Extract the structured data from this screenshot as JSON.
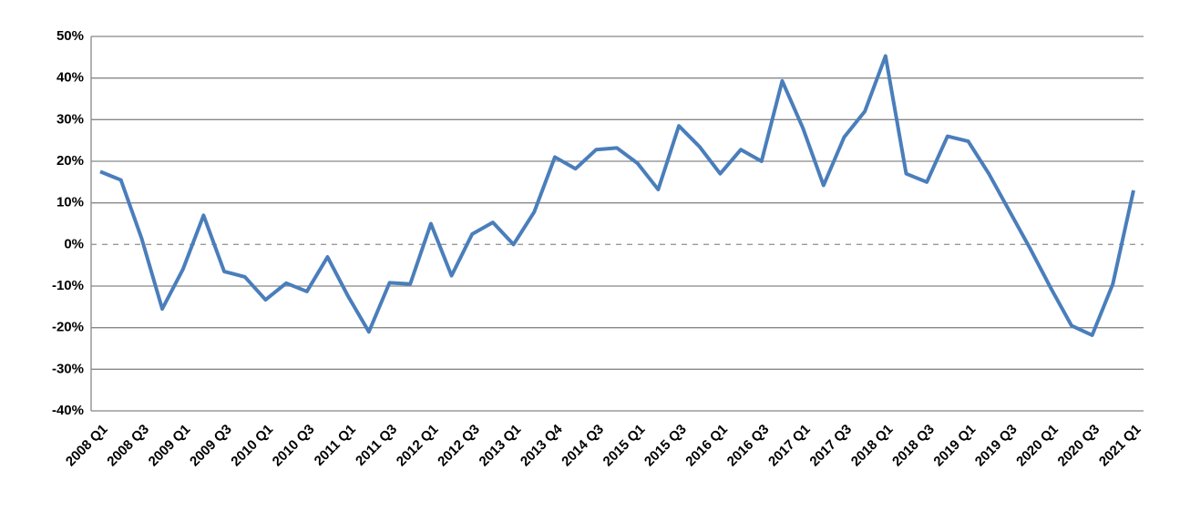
{
  "chart_data": {
    "type": "line",
    "categories": [
      "2008 Q1",
      null,
      "2008 Q3",
      null,
      "2009 Q1",
      null,
      "2009 Q3",
      null,
      "2010 Q1",
      null,
      "2010 Q3",
      null,
      "2011 Q1",
      null,
      "2011 Q3",
      null,
      "2012 Q1",
      null,
      "2012 Q3",
      null,
      "2013 Q1",
      null,
      "2013 Q4",
      null,
      "2014 Q3",
      null,
      "2015 Q1",
      null,
      "2015 Q3",
      null,
      "2016 Q1",
      null,
      "2016 Q3",
      null,
      "2017 Q1",
      null,
      "2017 Q3",
      null,
      "2018 Q1",
      null,
      "2018 Q3",
      null,
      "2019 Q1",
      null,
      "2019 Q3",
      null,
      "2020 Q1",
      null,
      "2020 Q3",
      null,
      "2021 Q1"
    ],
    "series": [
      {
        "color": "#4a7ebb",
        "values": [
          17.5,
          15.5,
          1.5,
          -15.5,
          -6,
          7,
          -6.5,
          -7.8,
          -13.3,
          -9.3,
          -11.3,
          -3,
          -12.5,
          -21,
          -9.2,
          -9.5,
          5,
          -7.5,
          2.5,
          5.3,
          0,
          7.8,
          21,
          18.2,
          22.8,
          23.2,
          19.5,
          13.2,
          28.5,
          23.5,
          17,
          22.8,
          20,
          39.3,
          28,
          14.2,
          25.8,
          32,
          45.3,
          17,
          15,
          26,
          24.8,
          17,
          8,
          -1,
          -10.5,
          -19.5,
          -21.8,
          -9.5,
          13
        ]
      }
    ],
    "ylim": [
      -40,
      50
    ],
    "yticks": [
      {
        "value": -40,
        "label": "-40%"
      },
      {
        "value": -30,
        "label": "-30%"
      },
      {
        "value": -20,
        "label": "-20%"
      },
      {
        "value": -10,
        "label": "-10%"
      },
      {
        "value": 0,
        "label": "0%"
      },
      {
        "value": 10,
        "label": "10%"
      },
      {
        "value": 20,
        "label": "20%"
      },
      {
        "value": 30,
        "label": "30%"
      },
      {
        "value": 40,
        "label": "40%"
      },
      {
        "value": 50,
        "label": "50%"
      }
    ],
    "grid": true
  }
}
